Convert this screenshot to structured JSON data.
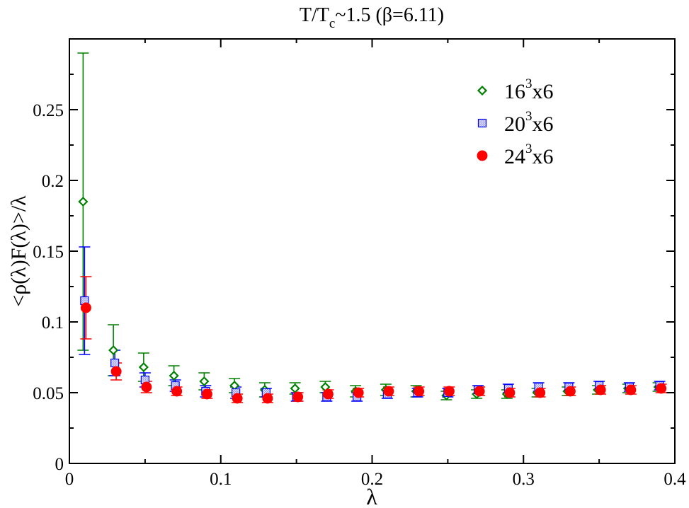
{
  "chart_data": {
    "type": "scatter",
    "title": {
      "main": "T/T",
      "sub": "c",
      "rest": "~1.5 (β=6.11)"
    },
    "xlabel": "λ",
    "ylabel": "<ρ(λ)F(λ)>/λ",
    "xlim": [
      0,
      0.4
    ],
    "ylim": [
      0,
      0.3
    ],
    "xticks": [
      0,
      0.1,
      0.2,
      0.3,
      0.4
    ],
    "xtick_labels": [
      "0",
      "0.1",
      "0.2",
      "0.3",
      "0.4"
    ],
    "yticks": [
      0,
      0.05,
      0.1,
      0.15,
      0.2,
      0.25
    ],
    "ytick_labels": [
      "0",
      "0.05",
      "0.1",
      "0.15",
      "0.2",
      "0.25"
    ],
    "grid": false,
    "legend_position": "top-right",
    "series": [
      {
        "name": "16^3x6",
        "legend": {
          "base": "16",
          "sup": "3",
          "suffix": "x6"
        },
        "marker": "diamond",
        "color": "#008000",
        "x": [
          0.01,
          0.03,
          0.05,
          0.07,
          0.09,
          0.11,
          0.13,
          0.15,
          0.17,
          0.19,
          0.21,
          0.23,
          0.25,
          0.27,
          0.29,
          0.31,
          0.33,
          0.35,
          0.37,
          0.39
        ],
        "y": [
          0.185,
          0.08,
          0.068,
          0.062,
          0.058,
          0.055,
          0.052,
          0.053,
          0.054,
          0.051,
          0.052,
          0.051,
          0.048,
          0.049,
          0.049,
          0.05,
          0.051,
          0.052,
          0.053,
          0.054
        ],
        "err": [
          0.105,
          0.018,
          0.01,
          0.007,
          0.006,
          0.005,
          0.005,
          0.004,
          0.004,
          0.004,
          0.004,
          0.004,
          0.003,
          0.003,
          0.003,
          0.003,
          0.003,
          0.003,
          0.003,
          0.003
        ]
      },
      {
        "name": "20^3x6",
        "legend": {
          "base": "20",
          "sup": "3",
          "suffix": "x6"
        },
        "marker": "square",
        "color": "#0000ff",
        "x": [
          0.01,
          0.03,
          0.05,
          0.07,
          0.09,
          0.11,
          0.13,
          0.15,
          0.17,
          0.19,
          0.21,
          0.23,
          0.25,
          0.27,
          0.29,
          0.31,
          0.33,
          0.35,
          0.37,
          0.39
        ],
        "y": [
          0.115,
          0.071,
          0.059,
          0.055,
          0.051,
          0.05,
          0.05,
          0.047,
          0.047,
          0.047,
          0.049,
          0.05,
          0.05,
          0.052,
          0.053,
          0.054,
          0.054,
          0.055,
          0.054,
          0.055
        ],
        "err": [
          0.038,
          0.009,
          0.005,
          0.004,
          0.004,
          0.004,
          0.003,
          0.003,
          0.003,
          0.003,
          0.003,
          0.003,
          0.003,
          0.003,
          0.003,
          0.003,
          0.003,
          0.003,
          0.003,
          0.003
        ]
      },
      {
        "name": "24^3x6",
        "legend": {
          "base": "24",
          "sup": "3",
          "suffix": "x6"
        },
        "marker": "circle",
        "color": "#ff0000",
        "x": [
          0.01,
          0.03,
          0.05,
          0.07,
          0.09,
          0.11,
          0.13,
          0.15,
          0.17,
          0.19,
          0.21,
          0.23,
          0.25,
          0.27,
          0.29,
          0.31,
          0.33,
          0.35,
          0.37,
          0.39
        ],
        "y": [
          0.11,
          0.065,
          0.054,
          0.051,
          0.049,
          0.046,
          0.046,
          0.047,
          0.049,
          0.05,
          0.051,
          0.051,
          0.051,
          0.051,
          0.05,
          0.05,
          0.051,
          0.052,
          0.052,
          0.053
        ],
        "err": [
          0.022,
          0.006,
          0.004,
          0.003,
          0.003,
          0.003,
          0.003,
          0.003,
          0.003,
          0.003,
          0.003,
          0.003,
          0.003,
          0.003,
          0.003,
          0.003,
          0.003,
          0.003,
          0.003,
          0.003
        ]
      }
    ]
  }
}
